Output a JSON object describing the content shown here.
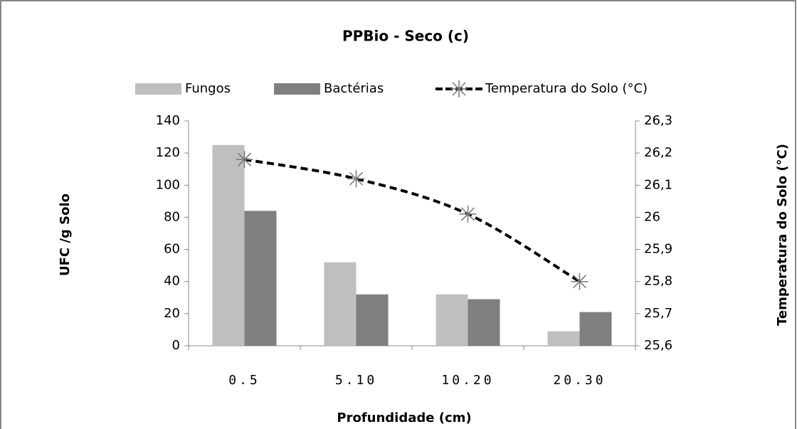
{
  "chart_data": {
    "type": "bar",
    "title": "PPBio - Seco (c)",
    "xlabel": "Profundidade (cm)",
    "ylabel": "UFC /g Solo",
    "y2label": "Temperatura do Solo (°C)",
    "categories": [
      "0.5",
      "5.10",
      "10.20",
      "20.30"
    ],
    "series": [
      {
        "name": "Fungos",
        "type": "bar",
        "color": "#bfbfbf",
        "values": [
          125,
          52,
          32,
          9
        ]
      },
      {
        "name": "Bactérias",
        "type": "bar",
        "color": "#7f7f7f",
        "values": [
          84,
          32,
          29,
          21
        ]
      },
      {
        "name": "Temperatura do Solo (°C)",
        "type": "line",
        "color": "#000000",
        "axis": "y2",
        "values": [
          26.18,
          26.12,
          26.01,
          25.8
        ]
      }
    ],
    "ylim": [
      0,
      140
    ],
    "yticks": [
      0,
      20,
      40,
      60,
      80,
      100,
      120,
      140
    ],
    "y2lim": [
      25.6,
      26.3
    ],
    "y2ticks": [
      {
        "value": 25.6,
        "label": "25,6"
      },
      {
        "value": 25.7,
        "label": "25,7"
      },
      {
        "value": 25.8,
        "label": "25,8"
      },
      {
        "value": 25.9,
        "label": "25,9"
      },
      {
        "value": 26,
        "label": "26"
      },
      {
        "value": 26.1,
        "label": "26,1"
      },
      {
        "value": 26.2,
        "label": "26,2"
      },
      {
        "value": 26.3,
        "label": "26,3"
      }
    ],
    "legend": "top"
  }
}
